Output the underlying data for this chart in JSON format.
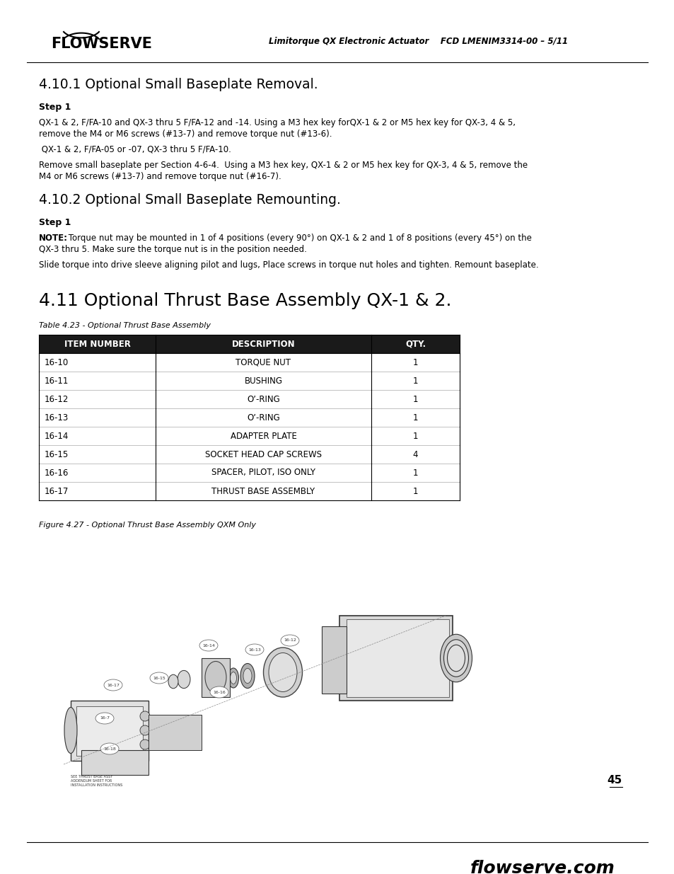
{
  "page_bg": "#ffffff",
  "logo_text": "FLOWSERVE",
  "header_right": "Limitorque QX Electronic Actuator    FCD LMENIM3314-00 – 5/11",
  "footer_text": "flowserve.com",
  "page_number": "45",
  "section_4101_title": "4.10.1 Optional Small Baseplate Removal.",
  "step1_label_1": "Step 1",
  "para1_line1": "QX-1 & 2, F/FA-10 and QX-3 thru 5 F/FA-12 and -14. Using a M3 hex key forQX-1 & 2 or M5 hex key for QX-3, 4 & 5,",
  "para1_line2": "remove the M4 or M6 screws (#13-7) and remove torque nut (#13-6).",
  "para2": " QX-1 & 2, F/FA-05 or -07, QX-3 thru 5 F/FA-10.",
  "para3_line1": "Remove small baseplate per Section 4-6-4.  Using a M3 hex key, QX-1 & 2 or M5 hex key for QX-3, 4 & 5, remove the",
  "para3_line2": "M4 or M6 screws (#13-7) and remove torque nut (#16-7).",
  "section_4102_title": "4.10.2 Optional Small Baseplate Remounting.",
  "step1_label_2": "Step 1",
  "note_bold": "NOTE:",
  "note_text_line1": " Torque nut may be mounted in 1 of 4 positions (every 90°) on QX-1 & 2 and 1 of 8 positions (every 45°) on the",
  "note_text_line2": "QX-3 thru 5. Make sure the torque nut is in the position needed.",
  "para4": "Slide torque into drive sleeve aligning pilot and lugs, Place screws in torque nut holes and tighten. Remount baseplate.",
  "section_411_title": "4.11 Optional Thrust Base Assembly QX-1 & 2.",
  "table_caption": "Table 4.23 - Optional Thrust Base Assembly",
  "table_headers": [
    "ITEM NUMBER",
    "DESCRIPTION",
    "QTY."
  ],
  "table_header_bg": "#1a1a1a",
  "table_header_fg": "#ffffff",
  "table_rows": [
    [
      "16-10",
      "TORQUE NUT",
      "1"
    ],
    [
      "16-11",
      "BUSHING",
      "1"
    ],
    [
      "16-12",
      "Oʼ-RING",
      "1"
    ],
    [
      "16-13",
      "Oʼ-RING",
      "1"
    ],
    [
      "16-14",
      "ADAPTER PLATE",
      "1"
    ],
    [
      "16-15",
      "SOCKET HEAD CAP SCREWS",
      "4"
    ],
    [
      "16-16",
      "SPACER, PILOT, ISO ONLY",
      "1"
    ],
    [
      "16-17",
      "THRUST BASE ASSEMBLY",
      "1"
    ]
  ],
  "fig_caption": "Figure 4.27 - Optional Thrust Base Assembly QXM Only"
}
